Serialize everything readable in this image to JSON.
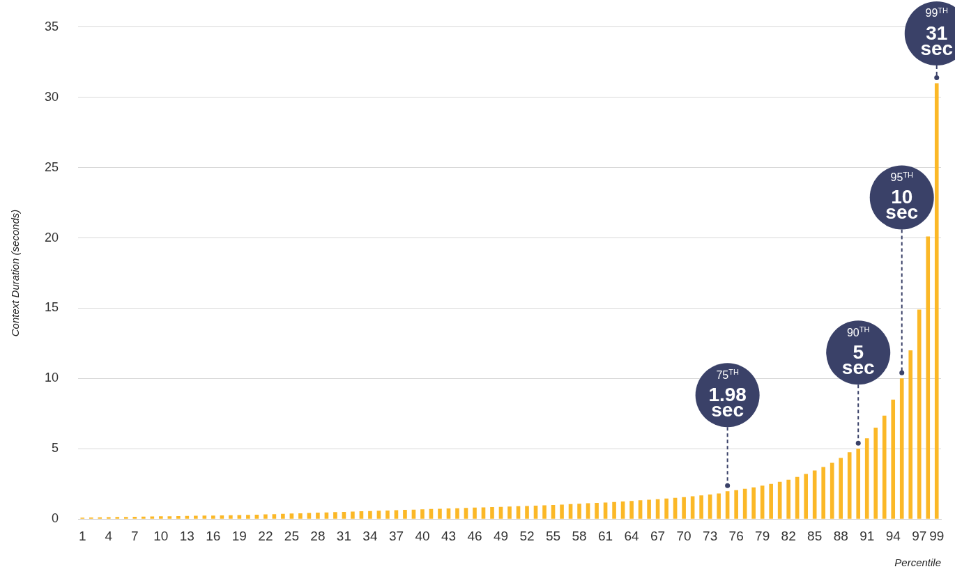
{
  "chart_data": {
    "type": "bar",
    "xlabel": "Percentile",
    "ylabel": "Context Duration (seconds)",
    "x": [
      1,
      2,
      3,
      4,
      5,
      6,
      7,
      8,
      9,
      10,
      11,
      12,
      13,
      14,
      15,
      16,
      17,
      18,
      19,
      20,
      21,
      22,
      23,
      24,
      25,
      26,
      27,
      28,
      29,
      30,
      31,
      32,
      33,
      34,
      35,
      36,
      37,
      38,
      39,
      40,
      41,
      42,
      43,
      44,
      45,
      46,
      47,
      48,
      49,
      50,
      51,
      52,
      53,
      54,
      55,
      56,
      57,
      58,
      59,
      60,
      61,
      62,
      63,
      64,
      65,
      66,
      67,
      68,
      69,
      70,
      71,
      72,
      73,
      74,
      75,
      76,
      77,
      78,
      79,
      80,
      81,
      82,
      83,
      84,
      85,
      86,
      87,
      88,
      89,
      90,
      91,
      92,
      93,
      94,
      95,
      96,
      97,
      98,
      99
    ],
    "values": [
      0.1,
      0.11,
      0.12,
      0.13,
      0.14,
      0.15,
      0.16,
      0.17,
      0.18,
      0.19,
      0.2,
      0.21,
      0.22,
      0.23,
      0.24,
      0.25,
      0.26,
      0.27,
      0.28,
      0.3,
      0.31,
      0.33,
      0.35,
      0.37,
      0.39,
      0.41,
      0.43,
      0.45,
      0.47,
      0.49,
      0.51,
      0.53,
      0.55,
      0.57,
      0.59,
      0.61,
      0.63,
      0.65,
      0.67,
      0.69,
      0.71,
      0.73,
      0.75,
      0.77,
      0.79,
      0.81,
      0.83,
      0.85,
      0.87,
      0.89,
      0.91,
      0.93,
      0.95,
      0.97,
      1.0,
      1.03,
      1.06,
      1.09,
      1.12,
      1.15,
      1.18,
      1.21,
      1.25,
      1.29,
      1.33,
      1.37,
      1.41,
      1.46,
      1.51,
      1.56,
      1.62,
      1.68,
      1.75,
      1.82,
      1.98,
      2.05,
      2.15,
      2.25,
      2.37,
      2.5,
      2.65,
      2.8,
      3.0,
      3.2,
      3.45,
      3.7,
      4.0,
      4.35,
      4.75,
      5,
      5.75,
      6.5,
      7.35,
      8.5,
      10,
      12,
      14.9,
      20.1,
      31
    ],
    "color": "#fbb827",
    "xlim": [
      0.5,
      99.5
    ],
    "xticks": [
      1,
      4,
      7,
      10,
      13,
      16,
      19,
      22,
      25,
      28,
      31,
      34,
      37,
      40,
      43,
      46,
      49,
      52,
      55,
      58,
      61,
      64,
      67,
      70,
      73,
      76,
      79,
      82,
      85,
      88,
      91,
      94,
      97,
      99
    ],
    "ylim": [
      0,
      35
    ],
    "yticks": [
      0,
      5,
      10,
      15,
      20,
      25,
      30,
      35
    ],
    "grid": "y",
    "legend": false,
    "annotations": [
      {
        "text": "75$^{TH}$\n1.98\nsec",
        "x": 75,
        "y": 1.98
      },
      {
        "text": "90$^{TH}$\n5\nsec",
        "x": 90,
        "y": 5
      },
      {
        "text": "95$^{TH}$\n10\nsec",
        "x": 95,
        "y": 10
      },
      {
        "text": "99$^{TH}$\n31\nsec",
        "x": 99,
        "y": 31
      }
    ]
  }
}
